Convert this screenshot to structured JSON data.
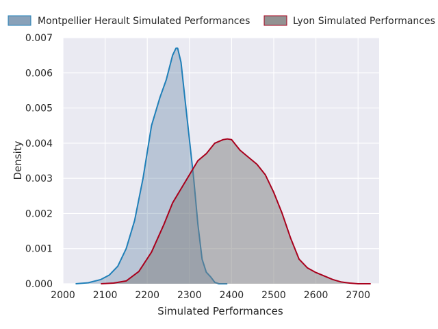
{
  "chart_data": {
    "type": "area",
    "title": "",
    "xlabel": "Simulated Performances",
    "ylabel": "Density",
    "xlim": [
      2000,
      2750
    ],
    "ylim": [
      0,
      0.007
    ],
    "x_ticks": [
      2000,
      2100,
      2200,
      2300,
      2400,
      2500,
      2600,
      2700
    ],
    "y_ticks": [
      0.0,
      0.001,
      0.002,
      0.003,
      0.004,
      0.005,
      0.006,
      0.007
    ],
    "x_tick_labels": [
      "2000",
      "2100",
      "2200",
      "2300",
      "2400",
      "2500",
      "2600",
      "2700"
    ],
    "y_tick_labels": [
      "0.000",
      "0.001",
      "0.002",
      "0.003",
      "0.004",
      "0.005",
      "0.006",
      "0.007"
    ],
    "grid": true,
    "legend_position": "top",
    "series": [
      {
        "name": "Montpellier Herault Simulated Performances",
        "line_color": "#1f7fb8",
        "fill_color": "#4a6f94",
        "fill_opacity": 0.3,
        "x": [
          2030,
          2060,
          2090,
          2110,
          2130,
          2150,
          2170,
          2190,
          2210,
          2230,
          2245,
          2260,
          2268,
          2272,
          2280,
          2290,
          2300,
          2310,
          2320,
          2330,
          2340,
          2350,
          2360,
          2370,
          2380,
          2390
        ],
        "y": [
          0.0,
          3e-05,
          0.00012,
          0.00025,
          0.0005,
          0.001,
          0.0018,
          0.003,
          0.0045,
          0.0053,
          0.0058,
          0.0065,
          0.0067,
          0.0067,
          0.0063,
          0.0052,
          0.0041,
          0.003,
          0.0017,
          0.0007,
          0.00033,
          0.0002,
          4e-05,
          0.0,
          0.0,
          0.0
        ]
      },
      {
        "name": "Lyon Simulated Performances",
        "line_color": "#a8001c",
        "fill_color": "#7f7f7f",
        "fill_opacity": 0.5,
        "x": [
          2090,
          2120,
          2150,
          2180,
          2210,
          2240,
          2260,
          2280,
          2300,
          2320,
          2340,
          2360,
          2380,
          2390,
          2400,
          2420,
          2440,
          2460,
          2480,
          2500,
          2520,
          2540,
          2560,
          2580,
          2600,
          2620,
          2640,
          2660,
          2680,
          2700,
          2730
        ],
        "y": [
          0.0,
          2e-05,
          8e-05,
          0.00035,
          0.0009,
          0.0017,
          0.0023,
          0.0027,
          0.0031,
          0.0035,
          0.0037,
          0.004,
          0.0041,
          0.00412,
          0.0041,
          0.0038,
          0.0036,
          0.0034,
          0.0031,
          0.0026,
          0.002,
          0.0013,
          0.0007,
          0.00045,
          0.00032,
          0.00022,
          0.00012,
          5e-05,
          2e-05,
          0.0,
          0.0
        ]
      }
    ]
  }
}
